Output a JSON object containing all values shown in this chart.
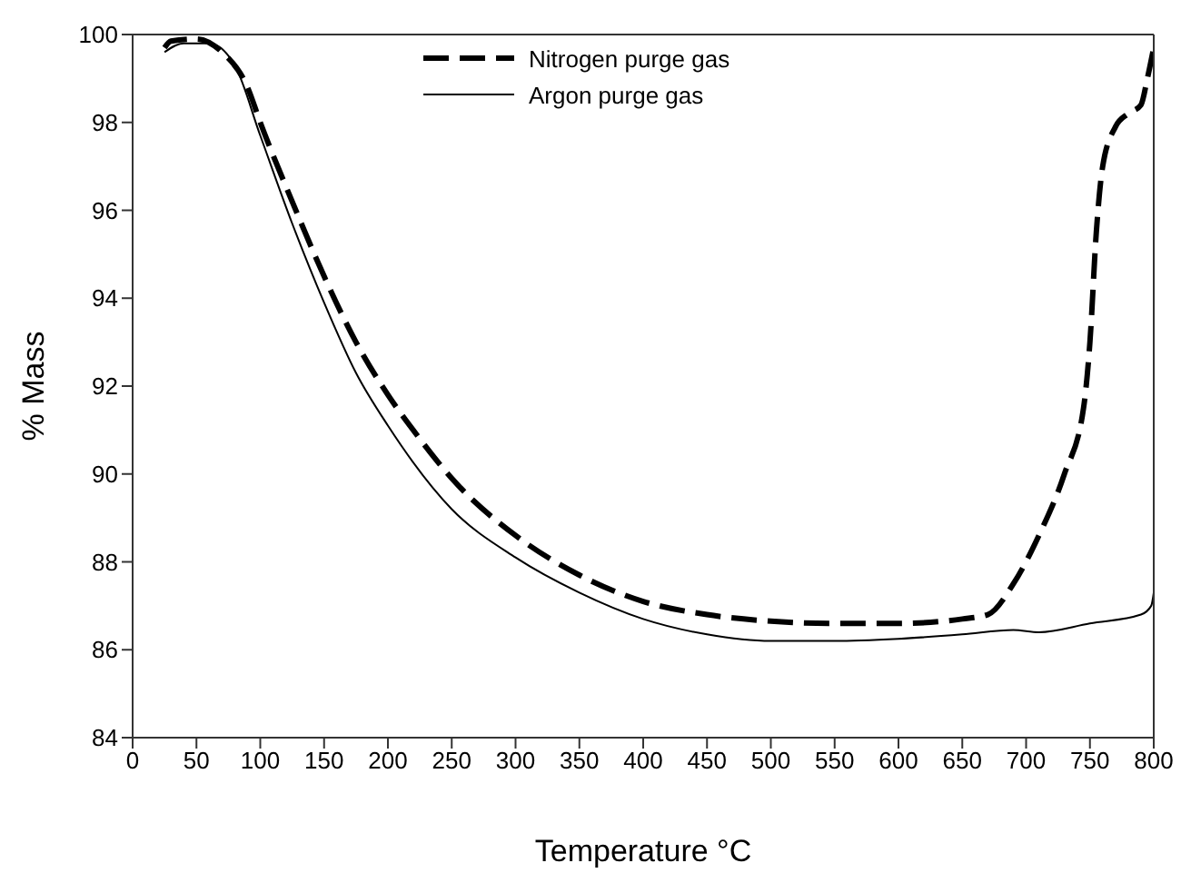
{
  "chart_data": {
    "type": "line",
    "xlabel": "Temperature °C",
    "ylabel": "% Mass",
    "xlim": [
      0,
      800
    ],
    "xticks": [
      0,
      50,
      100,
      150,
      200,
      250,
      300,
      350,
      400,
      450,
      500,
      550,
      600,
      650,
      700,
      750,
      800
    ],
    "ylim": [
      84,
      100
    ],
    "yticks": [
      84,
      86,
      88,
      90,
      92,
      94,
      96,
      98,
      100
    ],
    "legend": "top",
    "marker": "none",
    "series": [
      {
        "name": "Nitrogen purge gas",
        "color": "#000000",
        "line_style": "dashed",
        "x": [
          25,
          30,
          50,
          70,
          90,
          100,
          125,
          150,
          175,
          200,
          225,
          250,
          300,
          350,
          400,
          450,
          500,
          550,
          600,
          650,
          670,
          690,
          710,
          730,
          745,
          750,
          755,
          760,
          770,
          780,
          790,
          795,
          800
        ],
        "values": [
          99.7,
          99.85,
          99.9,
          99.6,
          98.8,
          98.0,
          96.2,
          94.5,
          93.0,
          91.8,
          90.8,
          89.9,
          88.6,
          87.7,
          87.1,
          86.8,
          86.65,
          86.6,
          86.6,
          86.7,
          86.8,
          87.5,
          88.6,
          90.0,
          91.5,
          93.0,
          95.5,
          97.0,
          97.9,
          98.2,
          98.4,
          99.0,
          99.7
        ]
      },
      {
        "name": "Argon purge gas",
        "color": "#000000",
        "line_style": "solid",
        "x": [
          25,
          40,
          60,
          80,
          100,
          125,
          150,
          175,
          200,
          250,
          300,
          350,
          400,
          450,
          500,
          550,
          600,
          650,
          690,
          710,
          750,
          790,
          798,
          800
        ],
        "values": [
          99.6,
          99.8,
          99.8,
          99.3,
          97.7,
          95.7,
          93.9,
          92.3,
          91.1,
          89.2,
          88.1,
          87.3,
          86.7,
          86.35,
          86.2,
          86.2,
          86.25,
          86.35,
          86.45,
          86.4,
          86.6,
          86.8,
          87.0,
          87.3
        ]
      }
    ]
  }
}
